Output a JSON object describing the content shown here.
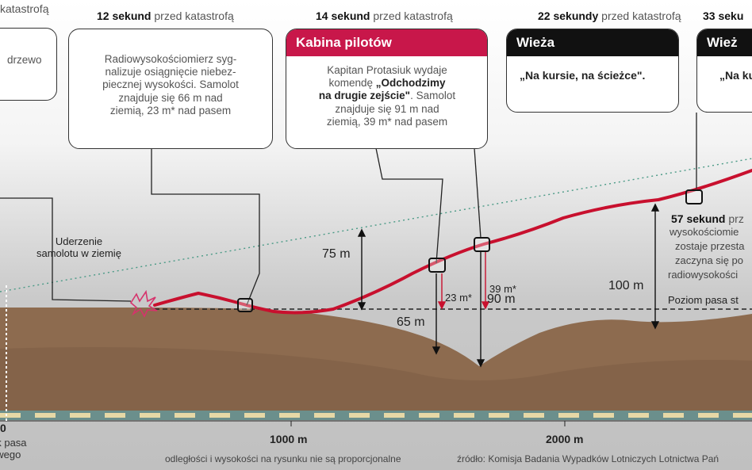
{
  "callouts": {
    "left_partial": {
      "header_rest": "katastrofą",
      "text": "drzewo"
    },
    "c12": {
      "header_bold": "12 sekund",
      "header_rest": "przed katastrofą",
      "text": "Radiowysokościomierz syg-\nnalizuje osiągnięcie niebez-\npiecznej wysokości. Samolot\nznajduje się 66 m nad\nziemią, 23 m* nad pasem"
    },
    "c14": {
      "header_bold": "14 sekund",
      "header_rest": "przed katastrofą",
      "bar": "Kabina pilotów",
      "line1": "Kapitan Protasiuk wydaje",
      "line2_pre": "komendę ",
      "line2_bold": "„Odchodzimy",
      "line3_bold": "na drugie zejście\"",
      "line3_rest": ". Samolot",
      "line4": "znajduje się 91 m nad",
      "line5": "ziemią, 39 m* nad pasem"
    },
    "c22": {
      "header_bold": "22 sekundy",
      "header_rest": "przed katastrofą",
      "bar": "Wieża",
      "quote": "„Na kursie, na ścieżce\"."
    },
    "c33": {
      "header_bold": "33 seku",
      "bar": "Wież",
      "quote": "„Na ku"
    }
  },
  "annotations": {
    "impact": "Uderzenie\nsamolotu w ziemię",
    "d75": "75 m",
    "d65": "65 m",
    "d90": "90 m",
    "d23": "23 m*",
    "d39": "39 m*",
    "d100": "100 m",
    "runway_level": "Poziom pasa st",
    "c57_header_bold": "57 sekund",
    "c57_header_rest": "prz",
    "c57_lines": [
      "wysokościomie",
      "zostaje przesta",
      "zaczyna się po",
      "radiowysokości"
    ]
  },
  "axis": {
    "zero": "0",
    "m1000": "1000 m",
    "m2000": "2000 m",
    "runway_start": "ek pasa\nowego"
  },
  "footer": {
    "note": "odległości i wysokości na rysunku nie są proporcjonalne",
    "source": "źródło: Komisja Badania Wypadków Lotniczych Lotnictwa Pań"
  },
  "colors": {
    "flight_path": "#c8102e",
    "ground": "#8b6a4e",
    "cabin_bar": "#c8174a",
    "tower_bar": "#111111",
    "runway_dash": "#e6d8a6",
    "runway_base": "#6b8f8c"
  }
}
